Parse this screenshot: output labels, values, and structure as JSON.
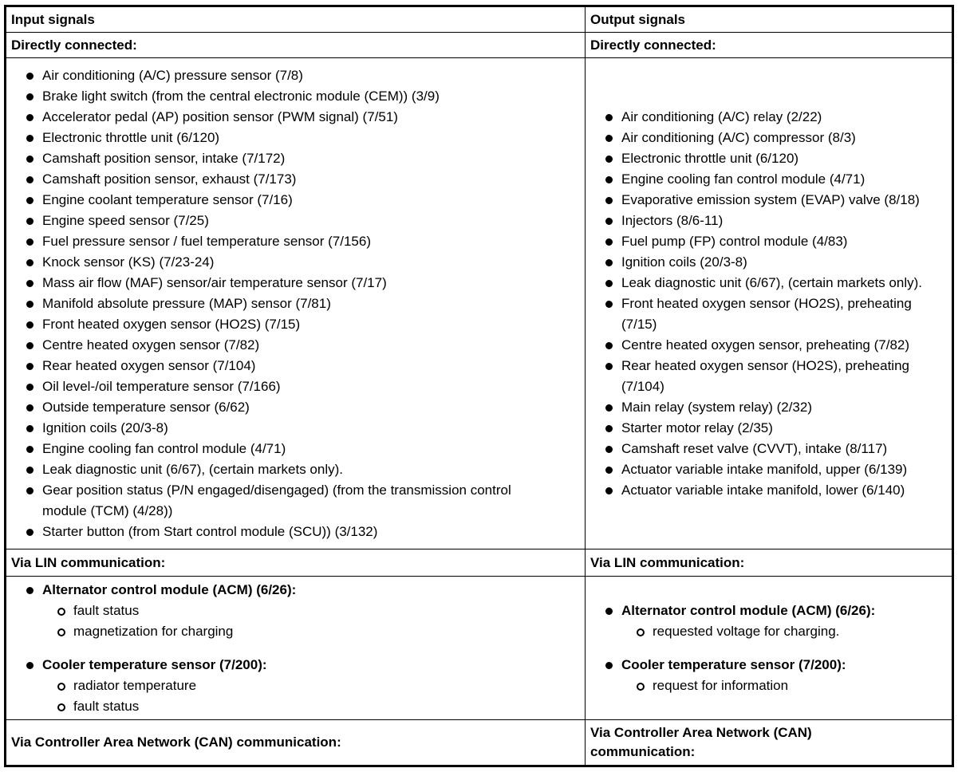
{
  "input": {
    "title": "Input signals",
    "direct_label": "Directly connected:",
    "direct": [
      "Air conditioning (A/C) pressure sensor (7/8)",
      "Brake light switch (from the central electronic module (CEM)) (3/9)",
      "Accelerator pedal (AP) position sensor (PWM signal) (7/51)",
      "Electronic throttle unit (6/120)",
      "Camshaft position sensor, intake (7/172)",
      "Camshaft position sensor, exhaust (7/173)",
      "Engine coolant temperature sensor (7/16)",
      "Engine speed sensor (7/25)",
      "Fuel pressure sensor / fuel temperature sensor (7/156)",
      "Knock sensor (KS) (7/23-24)",
      "Mass air flow (MAF) sensor/air temperature sensor (7/17)",
      "Manifold absolute pressure (MAP) sensor (7/81)",
      "Front heated oxygen sensor (HO2S) (7/15)",
      "Centre heated oxygen sensor (7/82)",
      "Rear heated oxygen sensor (7/104)",
      "Oil level-/oil temperature sensor (7/166)",
      "Outside temperature sensor (6/62)",
      "Ignition coils (20/3-8)",
      "Engine cooling fan control module (4/71)",
      "Leak diagnostic unit (6/67), (certain markets only).",
      "Gear position status (P/N engaged/disengaged) (from the transmission control module (TCM) (4/28))",
      "Starter button (from Start control module (SCU)) (3/132)"
    ],
    "lin_label": "Via LIN communication:",
    "lin": [
      {
        "name": "Alternator control module (ACM) (6/26):",
        "subs": [
          "fault status",
          "magnetization for charging"
        ]
      },
      {
        "name": "Cooler temperature sensor (7/200):",
        "subs": [
          "radiator temperature",
          "fault status"
        ]
      }
    ],
    "can_label": "Via Controller Area Network (CAN) communication:"
  },
  "output": {
    "title": "Output signals",
    "direct_label": "Directly connected:",
    "direct": [
      "Air conditioning (A/C) relay (2/22)",
      "Air conditioning (A/C) compressor (8/3)",
      "Electronic throttle unit (6/120)",
      "Engine cooling fan control module (4/71)",
      "Evaporative emission system (EVAP) valve (8/18)",
      "Injectors (8/6-11)",
      "Fuel pump (FP) control module (4/83)",
      "Ignition coils (20/3-8)",
      "Leak diagnostic unit (6/67), (certain markets only).",
      "Front heated oxygen sensor (HO2S), preheating (7/15)",
      "Centre heated oxygen sensor, preheating (7/82)",
      "Rear heated oxygen sensor (HO2S), preheating (7/104)",
      "Main relay (system relay) (2/32)",
      "Starter motor relay (2/35)",
      "Camshaft reset valve (CVVT), intake (8/117)",
      "Actuator variable intake manifold, upper (6/139)",
      "Actuator variable intake manifold, lower (6/140)"
    ],
    "lin_label": "Via LIN communication:",
    "lin": [
      {
        "name": "Alternator control module (ACM) (6/26):",
        "subs": [
          "requested voltage for charging."
        ]
      },
      {
        "name": "Cooler temperature sensor (7/200):",
        "subs": [
          "request for information"
        ]
      }
    ],
    "can_label": "Via Controller Area Network (CAN) communication:"
  }
}
